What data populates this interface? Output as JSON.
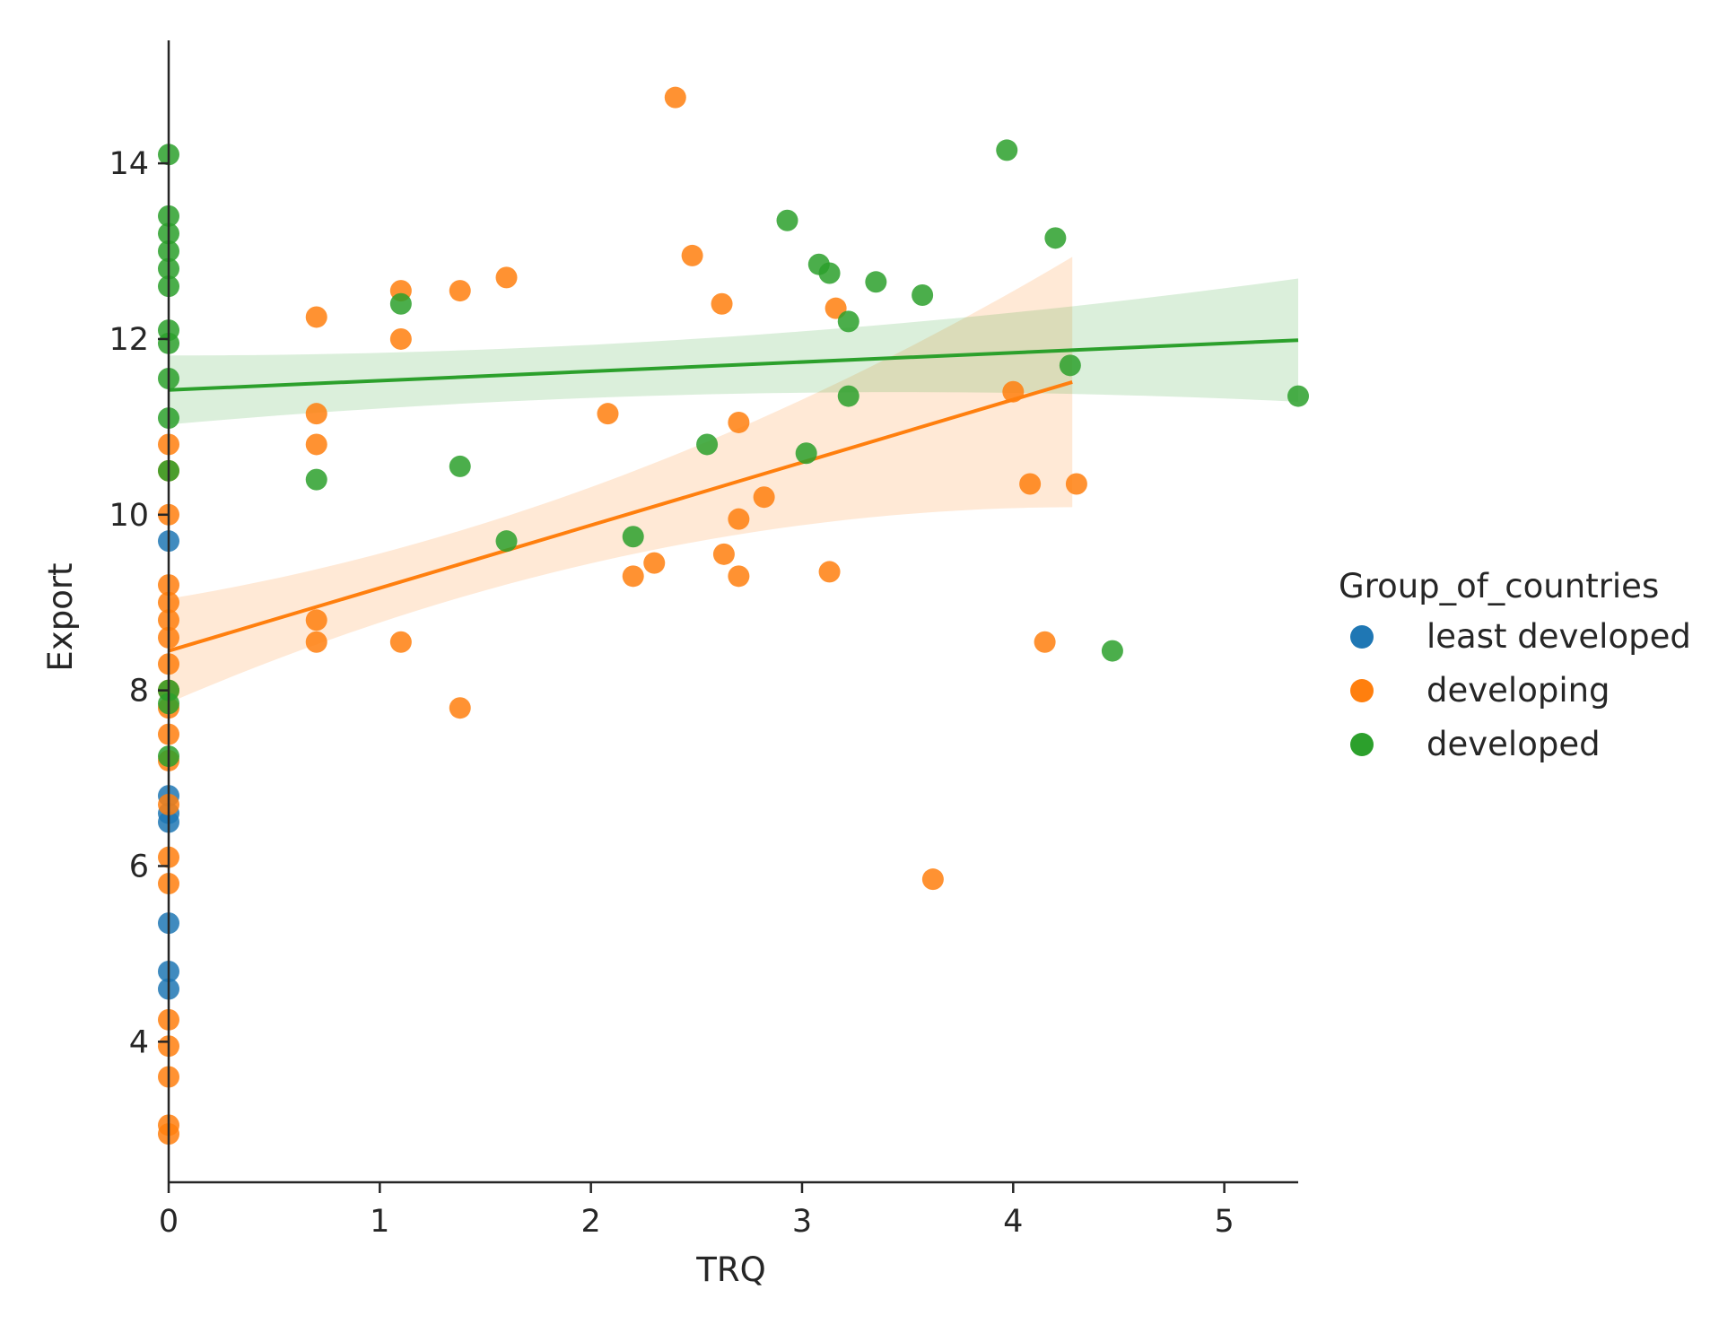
{
  "chart_data": {
    "type": "scatter",
    "title": "",
    "xlabel": "TRQ",
    "ylabel": "Export",
    "xlim": [
      0,
      5.35
    ],
    "ylim": [
      2.4,
      15.4
    ],
    "xticks": [
      0,
      1,
      2,
      3,
      4,
      5
    ],
    "yticks": [
      4,
      6,
      8,
      10,
      12,
      14
    ],
    "grid": false,
    "legend": {
      "title": "Group_of_countries",
      "placement": "right-outside",
      "entries": [
        "least developed",
        "developing",
        "developed"
      ]
    },
    "series": [
      {
        "name": "least developed",
        "color": "#1f77b4",
        "points": [
          [
            0,
            9.7
          ],
          [
            0,
            6.8
          ],
          [
            0,
            6.6
          ],
          [
            0,
            6.5
          ],
          [
            0,
            5.35
          ],
          [
            0,
            4.8
          ],
          [
            0,
            4.6
          ]
        ]
      },
      {
        "name": "developing",
        "color": "#ff7f0e",
        "fit": {
          "intercept": 8.45,
          "slope": 0.715,
          "x_range": [
            0,
            4.28
          ]
        },
        "points": [
          [
            0,
            10.8
          ],
          [
            0,
            10.5
          ],
          [
            0,
            10.0
          ],
          [
            0,
            9.2
          ],
          [
            0,
            9.0
          ],
          [
            0,
            8.8
          ],
          [
            0,
            8.6
          ],
          [
            0,
            8.3
          ],
          [
            0,
            8.0
          ],
          [
            0,
            7.8
          ],
          [
            0,
            7.5
          ],
          [
            0,
            7.2
          ],
          [
            0,
            6.7
          ],
          [
            0,
            6.1
          ],
          [
            0,
            5.8
          ],
          [
            0,
            4.25
          ],
          [
            0,
            3.95
          ],
          [
            0,
            3.6
          ],
          [
            0,
            3.05
          ],
          [
            0,
            2.95
          ],
          [
            0.7,
            12.25
          ],
          [
            0.7,
            11.15
          ],
          [
            0.7,
            10.8
          ],
          [
            0.7,
            8.8
          ],
          [
            0.7,
            8.55
          ],
          [
            1.1,
            12.55
          ],
          [
            1.1,
            12.0
          ],
          [
            1.1,
            8.55
          ],
          [
            1.38,
            12.55
          ],
          [
            1.38,
            7.8
          ],
          [
            1.6,
            12.7
          ],
          [
            2.08,
            11.15
          ],
          [
            2.2,
            9.3
          ],
          [
            2.3,
            9.45
          ],
          [
            2.4,
            14.75
          ],
          [
            2.48,
            12.95
          ],
          [
            2.62,
            12.4
          ],
          [
            2.63,
            9.55
          ],
          [
            2.7,
            11.05
          ],
          [
            2.7,
            9.95
          ],
          [
            2.7,
            9.3
          ],
          [
            2.82,
            10.2
          ],
          [
            3.13,
            9.35
          ],
          [
            3.16,
            12.35
          ],
          [
            3.62,
            5.85
          ],
          [
            4.0,
            11.4
          ],
          [
            4.08,
            10.35
          ],
          [
            4.15,
            8.55
          ],
          [
            4.3,
            10.35
          ]
        ]
      },
      {
        "name": "developed",
        "color": "#2ca02c",
        "fit": {
          "intercept": 11.42,
          "slope": 0.106,
          "x_range": [
            0,
            5.35
          ]
        },
        "points": [
          [
            0,
            14.1
          ],
          [
            0,
            13.4
          ],
          [
            0,
            13.2
          ],
          [
            0,
            13.0
          ],
          [
            0,
            12.8
          ],
          [
            0,
            12.6
          ],
          [
            0,
            12.1
          ],
          [
            0,
            11.95
          ],
          [
            0,
            11.55
          ],
          [
            0,
            11.1
          ],
          [
            0,
            10.5
          ],
          [
            0,
            8.0
          ],
          [
            0,
            7.85
          ],
          [
            0,
            7.25
          ],
          [
            0.7,
            10.4
          ],
          [
            1.1,
            12.4
          ],
          [
            1.38,
            10.55
          ],
          [
            1.6,
            9.7
          ],
          [
            2.2,
            9.75
          ],
          [
            2.55,
            10.8
          ],
          [
            2.93,
            13.35
          ],
          [
            3.02,
            10.7
          ],
          [
            3.08,
            12.85
          ],
          [
            3.13,
            12.75
          ],
          [
            3.22,
            12.2
          ],
          [
            3.22,
            11.35
          ],
          [
            3.35,
            12.65
          ],
          [
            3.57,
            12.5
          ],
          [
            3.97,
            14.15
          ],
          [
            4.2,
            13.15
          ],
          [
            4.27,
            11.7
          ],
          [
            4.47,
            8.45
          ],
          [
            5.35,
            11.35
          ]
        ]
      }
    ]
  }
}
